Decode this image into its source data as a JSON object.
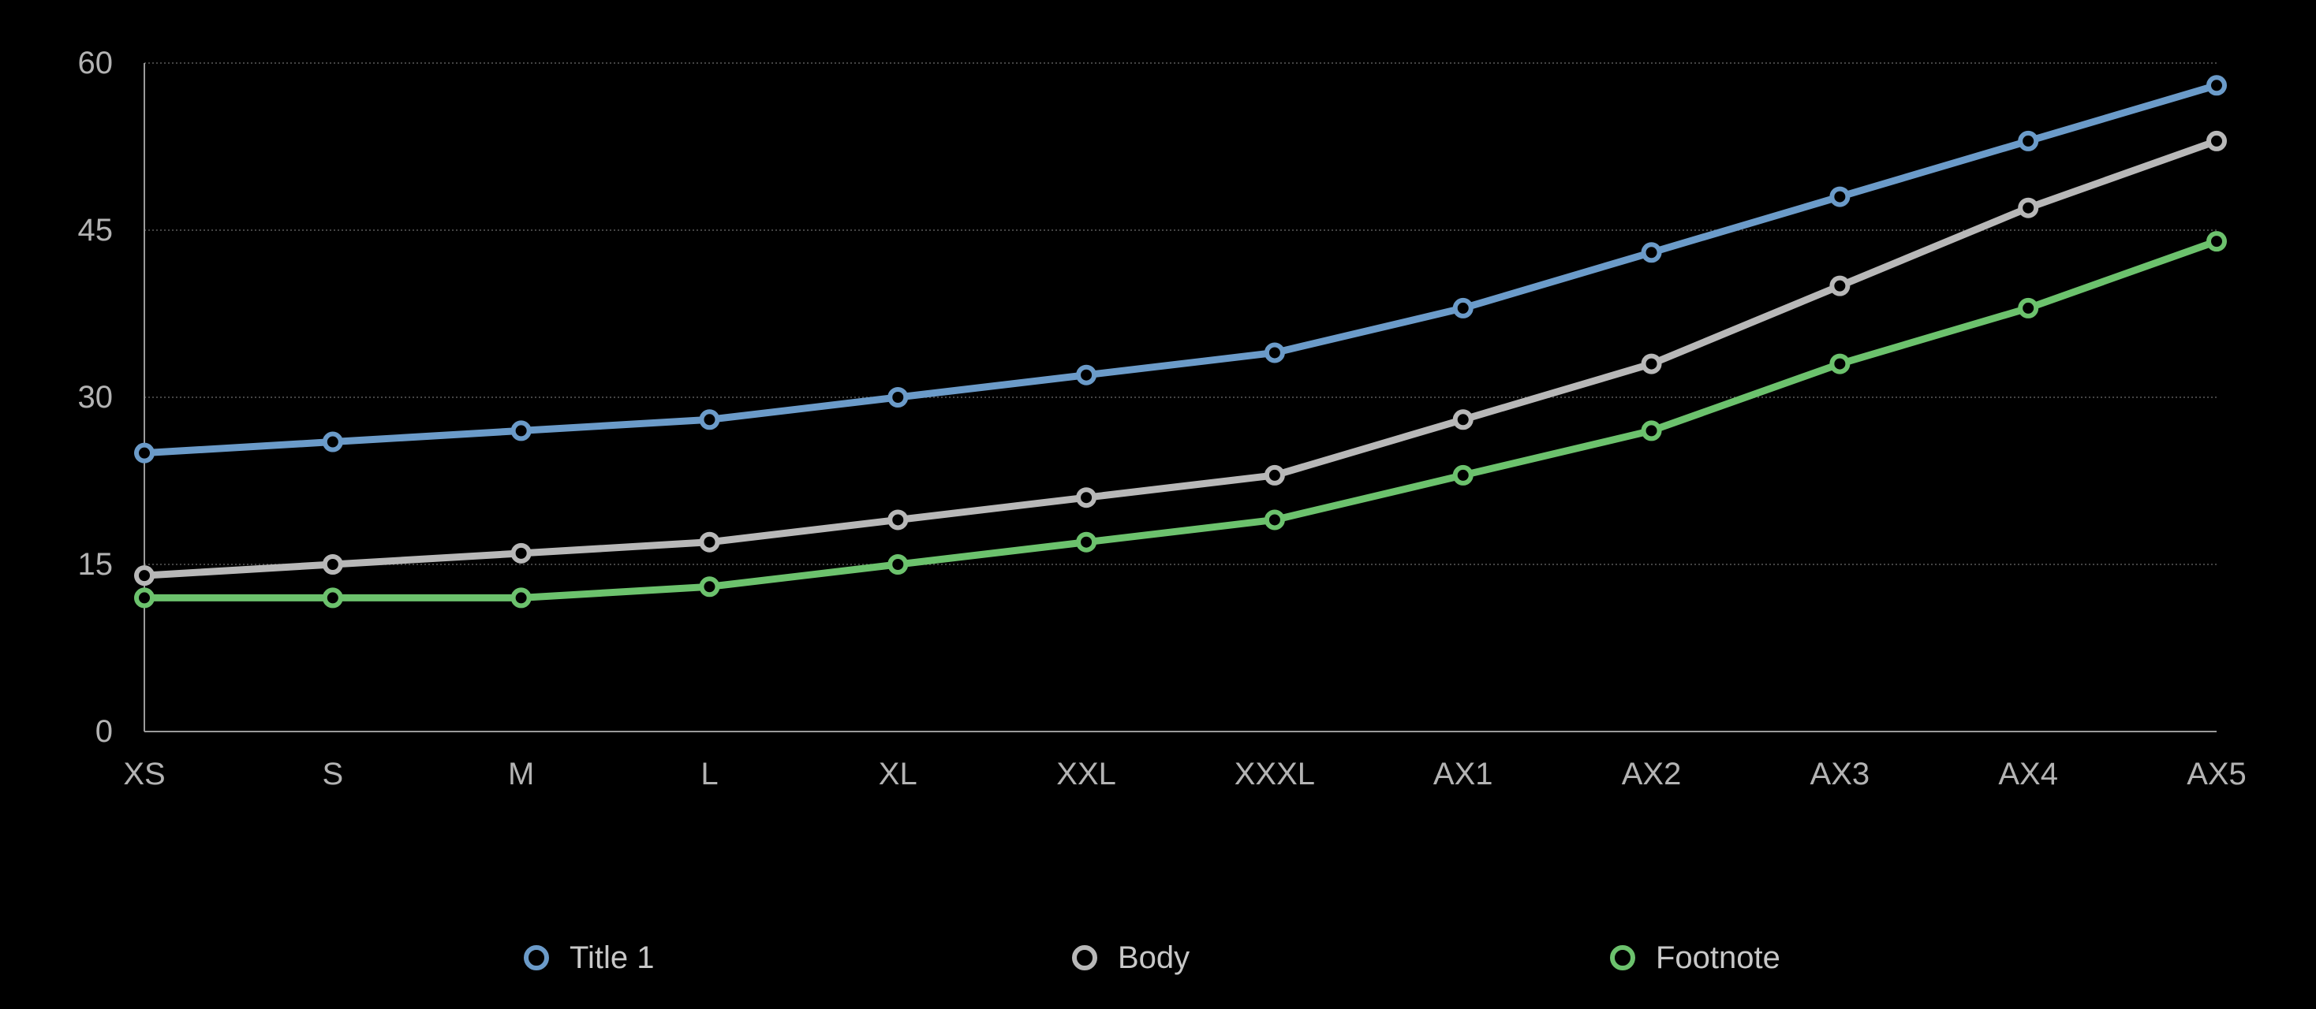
{
  "chart_data": {
    "type": "line",
    "title": "",
    "xlabel": "",
    "ylabel": "",
    "categories": [
      "XS",
      "S",
      "M",
      "L",
      "XL",
      "XXL",
      "XXXL",
      "AX1",
      "AX2",
      "AX3",
      "AX4",
      "AX5"
    ],
    "ylim": [
      0,
      60
    ],
    "yticks": [
      "0",
      "15",
      "30",
      "45",
      "60"
    ],
    "grid": true,
    "legend_position": "bottom",
    "series": [
      {
        "name": "Title 1",
        "color": "#6b9bc9",
        "values": [
          25,
          26,
          27,
          28,
          30,
          32,
          34,
          38,
          43,
          48,
          53,
          58
        ]
      },
      {
        "name": "Body",
        "color": "#b8b8b8",
        "values": [
          14,
          15,
          16,
          17,
          19,
          21,
          23,
          28,
          33,
          40,
          47,
          53
        ]
      },
      {
        "name": "Footnote",
        "color": "#6cc26d",
        "values": [
          12,
          12,
          12,
          13,
          15,
          17,
          19,
          23,
          27,
          33,
          38,
          44
        ]
      }
    ]
  }
}
